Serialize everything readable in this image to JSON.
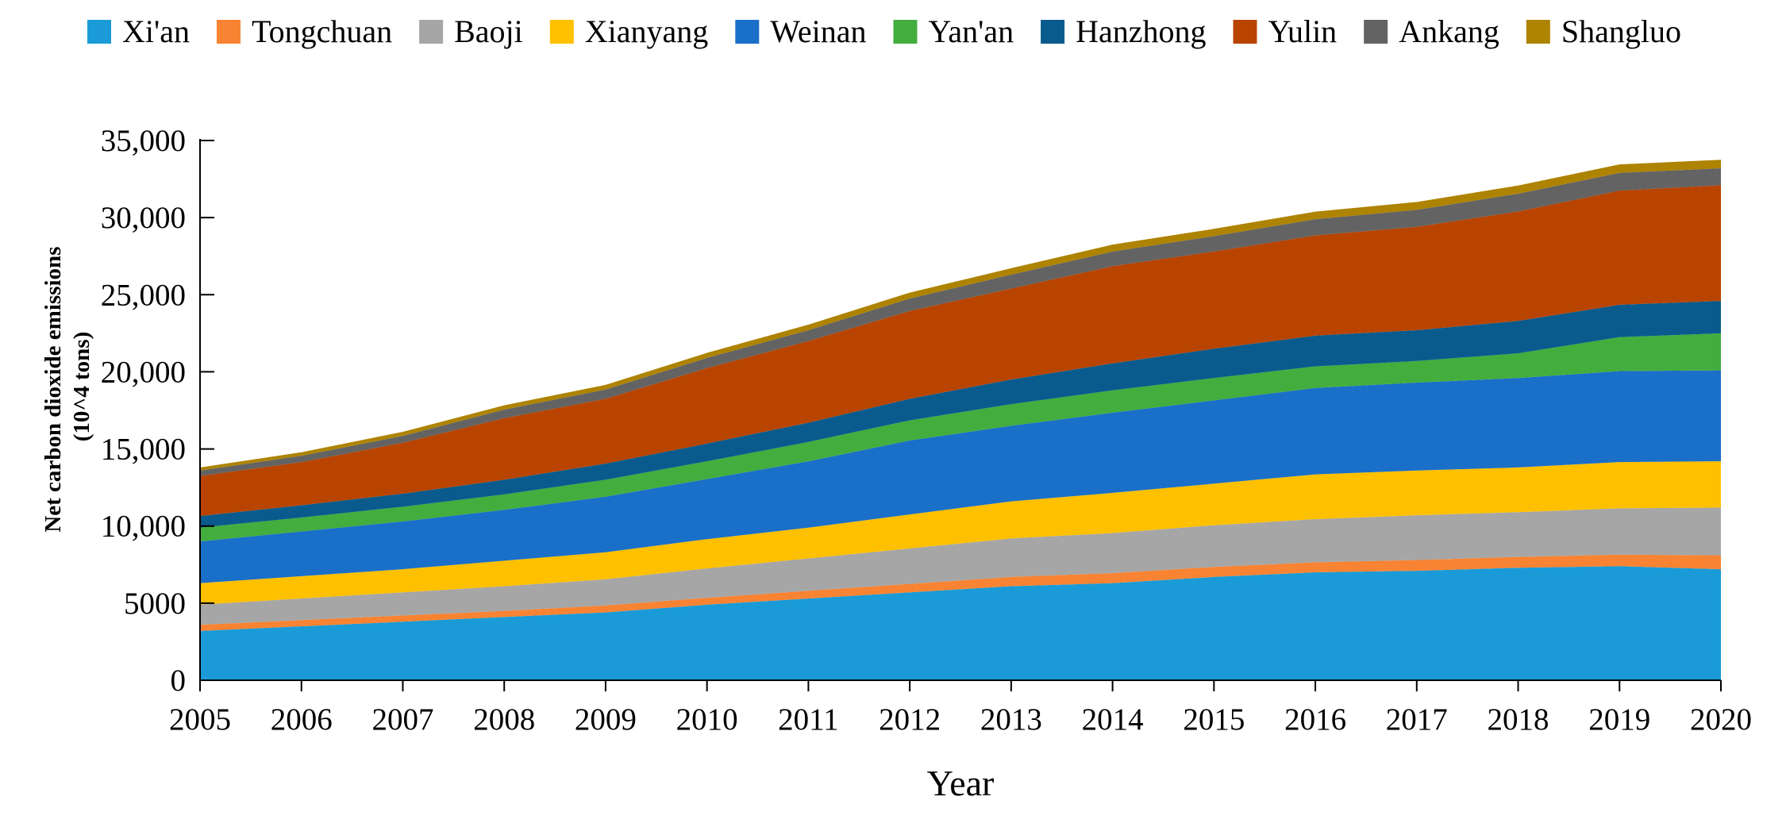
{
  "chart_data": {
    "type": "area",
    "stacked": true,
    "xlabel": "Year",
    "ylabel_lines": [
      "Net carbon dioxide emissions",
      "(10^4 tons)"
    ],
    "ylim": [
      0,
      35000
    ],
    "yticks": [
      0,
      5000,
      10000,
      15000,
      20000,
      25000,
      30000,
      35000
    ],
    "ytick_labels": [
      "0",
      "5000",
      "10,000",
      "15,000",
      "20,000",
      "25,000",
      "30,000",
      "35,000"
    ],
    "categories": [
      "2005",
      "2006",
      "2007",
      "2008",
      "2009",
      "2010",
      "2011",
      "2012",
      "2013",
      "2014",
      "2015",
      "2016",
      "2017",
      "2018",
      "2019",
      "2020"
    ],
    "grid": false,
    "legend_position": "top",
    "series": [
      {
        "name": "Xi'an",
        "color": "#1a9bd7",
        "values": [
          3200,
          3500,
          3800,
          4100,
          4400,
          4900,
          5300,
          5700,
          6100,
          6300,
          6700,
          7000,
          7100,
          7300,
          7400,
          7200
        ]
      },
      {
        "name": "Tongchuan",
        "color": "#f88332",
        "values": [
          400,
          400,
          400,
          400,
          450,
          450,
          500,
          550,
          600,
          650,
          650,
          650,
          700,
          700,
          750,
          900
        ]
      },
      {
        "name": "Baoji",
        "color": "#a6a6a6",
        "values": [
          1300,
          1400,
          1500,
          1600,
          1700,
          1900,
          2100,
          2300,
          2500,
          2600,
          2700,
          2800,
          2900,
          2900,
          3000,
          3100
        ]
      },
      {
        "name": "Xianyang",
        "color": "#ffc000",
        "values": [
          1400,
          1450,
          1500,
          1650,
          1750,
          1900,
          2000,
          2200,
          2400,
          2600,
          2700,
          2900,
          2900,
          2900,
          3000,
          3000
        ]
      },
      {
        "name": "Weinan",
        "color": "#1a6fc8",
        "values": [
          2700,
          2900,
          3100,
          3300,
          3600,
          3900,
          4300,
          4800,
          4900,
          5200,
          5400,
          5600,
          5700,
          5800,
          5900,
          5900
        ]
      },
      {
        "name": "Yan'an",
        "color": "#43ad3e",
        "values": [
          900,
          900,
          950,
          1000,
          1100,
          1150,
          1250,
          1300,
          1400,
          1450,
          1450,
          1400,
          1400,
          1600,
          2200,
          2400
        ]
      },
      {
        "name": "Hanzhong",
        "color": "#0a5b8d",
        "values": [
          750,
          800,
          850,
          950,
          1050,
          1150,
          1250,
          1400,
          1600,
          1750,
          1900,
          2000,
          2000,
          2100,
          2100,
          2100
        ]
      },
      {
        "name": "Yulin",
        "color": "#b84400",
        "values": [
          2600,
          2800,
          3300,
          4000,
          4200,
          4900,
          5300,
          5700,
          5900,
          6300,
          6300,
          6500,
          6700,
          7100,
          7400,
          7500
        ]
      },
      {
        "name": "Ankang",
        "color": "#636363",
        "values": [
          350,
          400,
          450,
          550,
          600,
          650,
          700,
          800,
          900,
          950,
          1000,
          1050,
          1100,
          1150,
          1150,
          1100
        ]
      },
      {
        "name": "Shangluo",
        "color": "#ad8300",
        "values": [
          200,
          230,
          260,
          280,
          300,
          330,
          360,
          390,
          420,
          450,
          470,
          490,
          510,
          530,
          550,
          550
        ]
      }
    ]
  }
}
